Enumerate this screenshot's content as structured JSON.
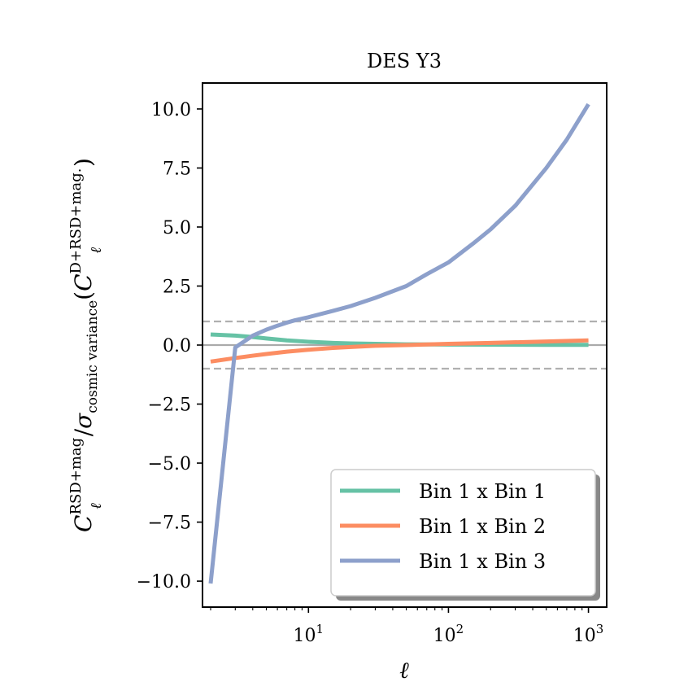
{
  "chart_data": {
    "type": "line",
    "title": "DES Y3",
    "xlabel": "ℓ",
    "ylabel": {
      "main": "C",
      "sub": "ℓ",
      "sup": "RSD+mag",
      "sigma": "σ",
      "sigma_sub": "cosmic variance",
      "paren_open": "(",
      "paren_close": ")",
      "inner_sup": "D+RSD+mag."
    },
    "xscale": "log",
    "xlim": [
      1.75,
      1350
    ],
    "ylim": [
      -11.1,
      11.1
    ],
    "yticks": [
      -10.0,
      -7.5,
      -5.0,
      -2.5,
      0.0,
      2.5,
      5.0,
      7.5,
      10.0
    ],
    "ytick_labels": [
      "−10.0",
      "−7.5",
      "−5.0",
      "−2.5",
      "0.0",
      "2.5",
      "5.0",
      "7.5",
      "10.0"
    ],
    "xticks": [
      {
        "value": 10,
        "base": "10",
        "exp": "1"
      },
      {
        "value": 100,
        "base": "10",
        "exp": "2"
      },
      {
        "value": 1000,
        "base": "10",
        "exp": "3"
      }
    ],
    "reference_lines": [
      {
        "y": 0,
        "style": "solid",
        "color": "#aaaaaa"
      },
      {
        "y": 1,
        "style": "dashed",
        "color": "#b0b0b0"
      },
      {
        "y": -1,
        "style": "dashed",
        "color": "#b0b0b0"
      }
    ],
    "series": [
      {
        "name": "Bin 1 x Bin 1",
        "color": "#66c2a5",
        "x": [
          2,
          3,
          4,
          5,
          7,
          10,
          15,
          20,
          30,
          50,
          100,
          200,
          500,
          1000
        ],
        "y": [
          0.45,
          0.4,
          0.34,
          0.28,
          0.2,
          0.14,
          0.09,
          0.07,
          0.05,
          0.03,
          0.02,
          0.015,
          0.01,
          0.01
        ]
      },
      {
        "name": "Bin 1 x Bin 2",
        "color": "#fc8d62",
        "x": [
          2,
          3,
          4,
          5,
          7,
          10,
          15,
          20,
          30,
          50,
          100,
          200,
          500,
          1000
        ],
        "y": [
          -0.7,
          -0.55,
          -0.45,
          -0.38,
          -0.28,
          -0.2,
          -0.12,
          -0.08,
          -0.03,
          0.0,
          0.05,
          0.09,
          0.15,
          0.2
        ]
      },
      {
        "name": "Bin 1 x Bin 3",
        "color": "#8da0cb",
        "x": [
          2,
          3,
          4,
          5,
          6,
          7,
          8,
          10,
          15,
          20,
          30,
          50,
          70,
          100,
          150,
          200,
          300,
          500,
          700,
          1000
        ],
        "y": [
          -10.1,
          -0.1,
          0.4,
          0.65,
          0.82,
          0.95,
          1.05,
          1.18,
          1.45,
          1.65,
          2.0,
          2.5,
          3.0,
          3.5,
          4.3,
          4.9,
          5.9,
          7.5,
          8.7,
          10.2
        ]
      }
    ],
    "legend": {
      "location": "lower right",
      "entries": [
        "Bin 1 x Bin 1",
        "Bin 1 x Bin 2",
        "Bin 1 x Bin 3"
      ]
    }
  }
}
